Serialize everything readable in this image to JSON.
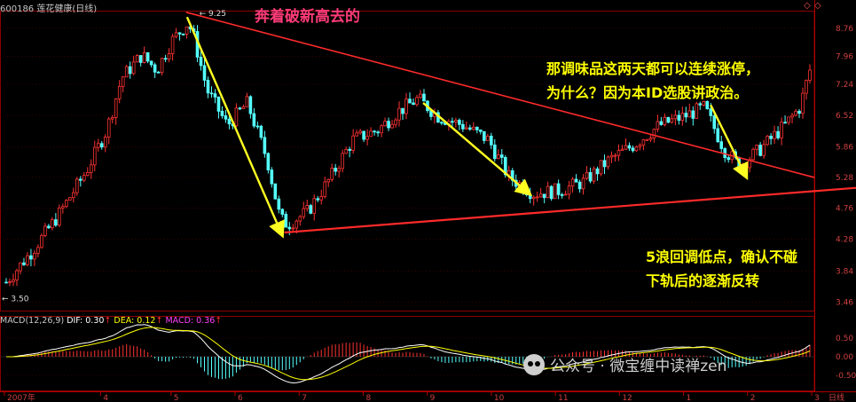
{
  "header": {
    "title": "600186 莲花健康(日线)",
    "corner_icons": [
      "◇",
      "◇"
    ]
  },
  "annotations": {
    "top": "奔着破新高去的",
    "right_line1": "那调味品这两天都可以连续涨停，",
    "right_line2": "为什么？因为本ID选股讲政治。",
    "bottom_line1": "5浪回调低点，确认不碰",
    "bottom_line2": "下轨后的逐渐反转"
  },
  "macd_label": {
    "name": "MACD(12,26,9)",
    "dif": "DIF: 0.30",
    "dea": "DEA: 0.12",
    "macd": "MACD: 0.36"
  },
  "watermark": "公众号 · 微宝缠中读禅zen",
  "colors": {
    "up": "#ff3232",
    "down": "#54ffff",
    "trend_line": "#ff2a2a",
    "arrow": "#ffff22",
    "dif": "#ffffff",
    "dea": "#ffff00",
    "annotation_pink": "#ff3b78",
    "annotation_yellow": "#ffff00"
  },
  "chart_data": {
    "type": "candlestick",
    "price_axis": {
      "ticks": [
        3.46,
        3.84,
        4.28,
        4.76,
        5.28,
        5.86,
        6.52,
        7.24,
        7.96,
        8.76
      ],
      "range": [
        3.36,
        9.3
      ]
    },
    "time_axis": {
      "ticks": [
        "2007年",
        "4",
        "5",
        "6",
        "7",
        "8",
        "9",
        "10",
        "11",
        "12",
        "1",
        "2",
        "3"
      ],
      "label": "日线"
    },
    "price_labels": {
      "high": "9.25",
      "low": "3.50"
    },
    "macd_axis": {
      "ticks": [
        0.5,
        0.0,
        -0.5
      ]
    },
    "path": [
      {
        "x": 0,
        "p": 3.7
      },
      {
        "x": 0.5,
        "p": 4.1
      },
      {
        "x": 1,
        "p": 4.6
      },
      {
        "x": 1.6,
        "p": 5.4
      },
      {
        "x": 2,
        "p": 6.2
      },
      {
        "x": 2.3,
        "p": 7.4
      },
      {
        "x": 2.7,
        "p": 8.0
      },
      {
        "x": 3,
        "p": 7.6
      },
      {
        "x": 3.3,
        "p": 8.4
      },
      {
        "x": 3.6,
        "p": 8.9
      },
      {
        "x": 3.7,
        "p": 8.7
      },
      {
        "x": 4,
        "p": 7.1
      },
      {
        "x": 4.4,
        "p": 6.3
      },
      {
        "x": 4.8,
        "p": 6.8
      },
      {
        "x": 5.2,
        "p": 5.6
      },
      {
        "x": 5.45,
        "p": 4.6
      },
      {
        "x": 5.6,
        "p": 4.5
      },
      {
        "x": 6.0,
        "p": 4.7
      },
      {
        "x": 6.4,
        "p": 5.2
      },
      {
        "x": 6.9,
        "p": 6.0
      },
      {
        "x": 7.4,
        "p": 6.2
      },
      {
        "x": 7.8,
        "p": 6.6
      },
      {
        "x": 8.2,
        "p": 6.9
      },
      {
        "x": 8.6,
        "p": 6.5
      },
      {
        "x": 9.1,
        "p": 6.3
      },
      {
        "x": 9.6,
        "p": 6.0
      },
      {
        "x": 10.0,
        "p": 5.3
      },
      {
        "x": 10.5,
        "p": 5.0
      },
      {
        "x": 11.0,
        "p": 5.05
      },
      {
        "x": 11.5,
        "p": 5.2
      },
      {
        "x": 12.0,
        "p": 5.6
      },
      {
        "x": 12.5,
        "p": 5.9
      },
      {
        "x": 13.0,
        "p": 6.3
      },
      {
        "x": 13.5,
        "p": 6.5
      },
      {
        "x": 13.9,
        "p": 6.7
      },
      {
        "x": 14.3,
        "p": 5.8
      },
      {
        "x": 14.6,
        "p": 5.5
      },
      {
        "x": 15.0,
        "p": 5.8
      },
      {
        "x": 15.5,
        "p": 6.3
      },
      {
        "x": 15.8,
        "p": 6.7
      },
      {
        "x": 16.0,
        "p": 7.6
      }
    ]
  }
}
